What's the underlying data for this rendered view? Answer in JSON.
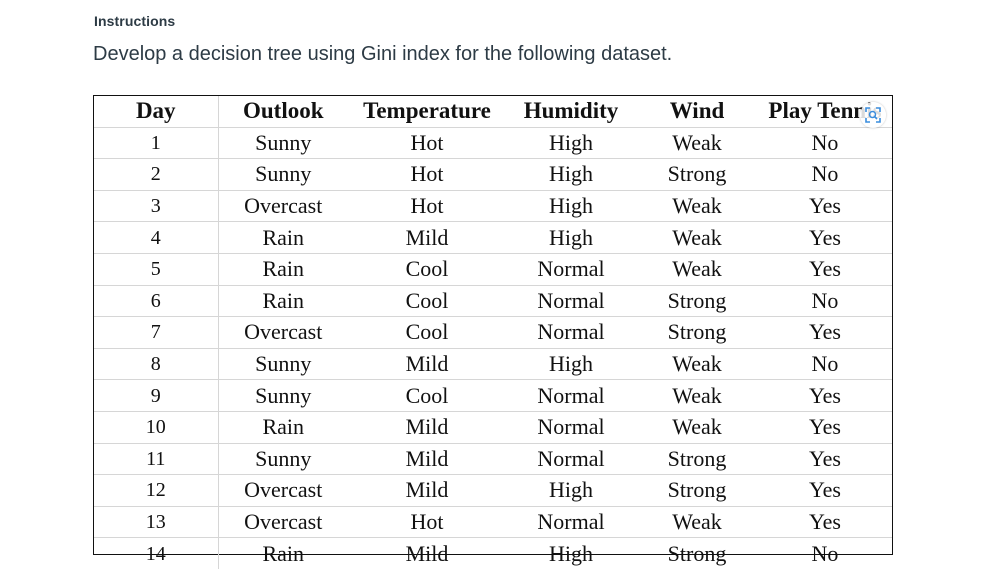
{
  "section_label": "Instructions",
  "prompt": "Develop a decision tree using Gini index for the following dataset.",
  "table": {
    "headers": [
      "Day",
      "Outlook",
      "Temperature",
      "Humidity",
      "Wind",
      "Play Tennis"
    ],
    "rows": [
      [
        "1",
        "Sunny",
        "Hot",
        "High",
        "Weak",
        "No"
      ],
      [
        "2",
        "Sunny",
        "Hot",
        "High",
        "Strong",
        "No"
      ],
      [
        "3",
        "Overcast",
        "Hot",
        "High",
        "Weak",
        "Yes"
      ],
      [
        "4",
        "Rain",
        "Mild",
        "High",
        "Weak",
        "Yes"
      ],
      [
        "5",
        "Rain",
        "Cool",
        "Normal",
        "Weak",
        "Yes"
      ],
      [
        "6",
        "Rain",
        "Cool",
        "Normal",
        "Strong",
        "No"
      ],
      [
        "7",
        "Overcast",
        "Cool",
        "Normal",
        "Strong",
        "Yes"
      ],
      [
        "8",
        "Sunny",
        "Mild",
        "High",
        "Weak",
        "No"
      ],
      [
        "9",
        "Sunny",
        "Cool",
        "Normal",
        "Weak",
        "Yes"
      ],
      [
        "10",
        "Rain",
        "Mild",
        "Normal",
        "Weak",
        "Yes"
      ],
      [
        "11",
        "Sunny",
        "Mild",
        "Normal",
        "Strong",
        "Yes"
      ],
      [
        "12",
        "Overcast",
        "Mild",
        "High",
        "Strong",
        "Yes"
      ],
      [
        "13",
        "Overcast",
        "Hot",
        "Normal",
        "Weak",
        "Yes"
      ],
      [
        "14",
        "Rain",
        "Mild",
        "High",
        "Strong",
        "No"
      ]
    ]
  },
  "icons": {
    "image_zoom": "zoom-image-icon"
  },
  "colors": {
    "text": "#2d3b45",
    "zoom_icon": "#3a8dde"
  }
}
